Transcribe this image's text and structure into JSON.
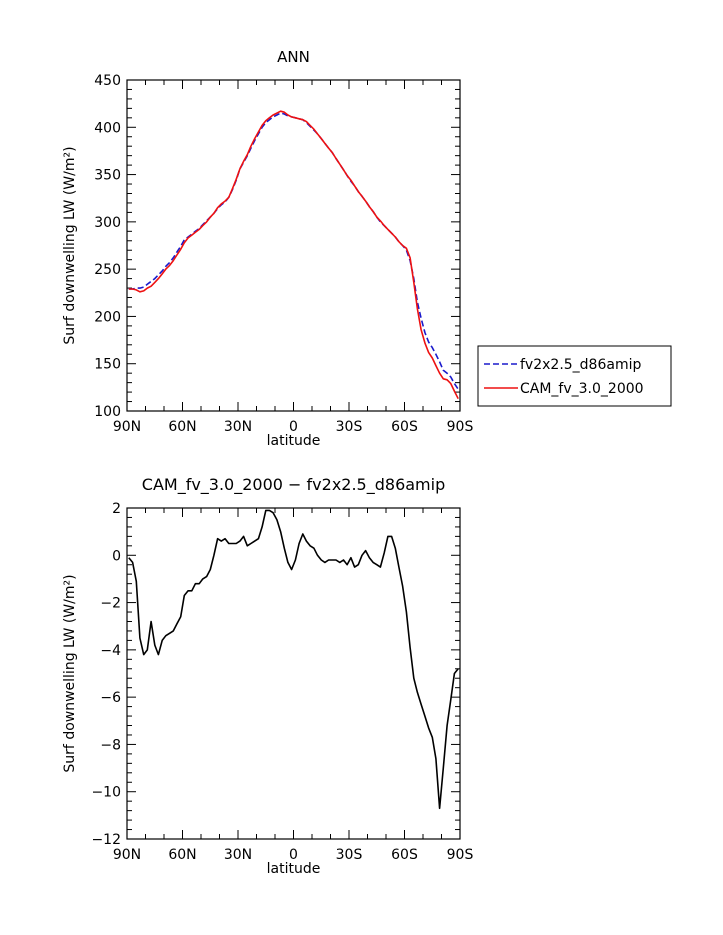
{
  "chart_data": [
    {
      "type": "line",
      "title": "ANN",
      "xlabel": "latitude",
      "ylabel": "Surf downwelling LW (W/m²)",
      "xlim": [
        90,
        -90
      ],
      "ylim": [
        100,
        450
      ],
      "x_ticks": [
        90,
        60,
        30,
        0,
        -30,
        -60,
        -90
      ],
      "x_tick_labels": [
        "90N",
        "60N",
        "30N",
        "0",
        "30S",
        "60S",
        "90S"
      ],
      "y_ticks": [
        100,
        150,
        200,
        250,
        300,
        350,
        400,
        450
      ],
      "y_tick_labels": [
        "100",
        "150",
        "200",
        "250",
        "300",
        "350",
        "400",
        "450"
      ],
      "legend": {
        "placement": "outside-right"
      },
      "series": [
        {
          "name": "fv2x2.5_d86amip",
          "color": "#1a1acc",
          "dash": "dashed",
          "x": [
            89,
            87,
            85,
            83,
            81,
            79,
            77,
            75,
            73,
            71,
            69,
            67,
            65,
            63,
            61,
            59,
            57,
            55,
            53,
            51,
            49,
            47,
            45,
            43,
            41,
            39,
            37,
            35,
            33,
            31,
            29,
            27,
            25,
            23,
            21,
            19,
            17,
            15,
            13,
            11,
            9,
            7,
            5,
            3,
            1,
            -1,
            -3,
            -5,
            -7,
            -9,
            -11,
            -13,
            -15,
            -17,
            -19,
            -21,
            -23,
            -25,
            -27,
            -29,
            -31,
            -33,
            -35,
            -37,
            -39,
            -41,
            -43,
            -45,
            -47,
            -49,
            -51,
            -53,
            -55,
            -57,
            -59,
            -61,
            -63,
            -65,
            -67,
            -69,
            -71,
            -73,
            -75,
            -77,
            -79,
            -81,
            -83,
            -85,
            -87,
            -89
          ],
          "values": [
            229,
            229,
            230,
            230,
            231,
            234,
            237,
            240,
            244,
            248,
            253,
            257,
            262,
            268,
            274,
            281,
            284,
            287,
            290,
            293,
            297,
            301,
            305,
            309,
            314,
            318,
            321,
            326,
            334,
            344,
            356,
            363,
            370,
            378,
            386,
            393,
            400,
            405,
            408,
            411,
            413,
            415,
            414,
            412,
            411,
            410,
            409,
            408,
            405,
            401,
            397,
            393,
            388,
            383,
            378,
            373,
            367,
            361,
            355,
            349,
            343,
            338,
            332,
            327,
            322,
            316,
            311,
            305,
            300,
            296,
            292,
            288,
            284,
            279,
            275,
            270,
            259,
            240,
            215,
            198,
            183,
            173,
            167,
            160,
            152,
            143,
            140,
            136,
            129,
            123
          ]
        },
        {
          "name": "CAM_fv_3.0_2000",
          "color": "#ee1111",
          "dash": "solid",
          "x": [
            89,
            87,
            85,
            83,
            81,
            79,
            77,
            75,
            73,
            71,
            69,
            67,
            65,
            63,
            61,
            59,
            57,
            55,
            53,
            51,
            49,
            47,
            45,
            43,
            41,
            39,
            37,
            35,
            33,
            31,
            29,
            27,
            25,
            23,
            21,
            19,
            17,
            15,
            13,
            11,
            9,
            7,
            5,
            3,
            1,
            -1,
            -3,
            -5,
            -7,
            -9,
            -11,
            -13,
            -15,
            -17,
            -19,
            -21,
            -23,
            -25,
            -27,
            -29,
            -31,
            -33,
            -35,
            -37,
            -39,
            -41,
            -43,
            -45,
            -47,
            -49,
            -51,
            -53,
            -55,
            -57,
            -59,
            -61,
            -63,
            -65,
            -67,
            -69,
            -71,
            -73,
            -75,
            -77,
            -79,
            -81,
            -83,
            -85,
            -87,
            -89
          ],
          "values": [
            229,
            229,
            228,
            226,
            227,
            230,
            232,
            236,
            240,
            245,
            250,
            254,
            259,
            265,
            271,
            278,
            283,
            286,
            289,
            292,
            296,
            300,
            305,
            309,
            315,
            319,
            322,
            326,
            335,
            345,
            356,
            364,
            371,
            380,
            388,
            395,
            402,
            407,
            410,
            413,
            415,
            417,
            416,
            413,
            411,
            410,
            409,
            408,
            406,
            402,
            398,
            393,
            388,
            383,
            378,
            373,
            367,
            361,
            355,
            349,
            344,
            338,
            332,
            327,
            322,
            316,
            311,
            305,
            301,
            296,
            292,
            288,
            284,
            279,
            275,
            272,
            262,
            236,
            208,
            186,
            172,
            162,
            156,
            148,
            140,
            134,
            133,
            129,
            121,
            113
          ]
        }
      ]
    },
    {
      "type": "line",
      "title": "CAM_fv_3.0_2000 − fv2x2.5_d86amip",
      "xlabel": "latitude",
      "ylabel": "Surf downwelling LW (W/m²)",
      "xlim": [
        90,
        -90
      ],
      "ylim": [
        -12,
        2
      ],
      "x_ticks": [
        90,
        60,
        30,
        0,
        -30,
        -60,
        -90
      ],
      "x_tick_labels": [
        "90N",
        "60N",
        "30N",
        "0",
        "30S",
        "60S",
        "90S"
      ],
      "y_ticks": [
        -12,
        -10,
        -8,
        -6,
        -4,
        -2,
        0,
        2
      ],
      "y_tick_labels": [
        "−12",
        "−10",
        "−8",
        "−6",
        "−4",
        "−2",
        "0",
        "2"
      ],
      "series": [
        {
          "color": "#000000",
          "dash": "solid",
          "x": [
            89,
            87,
            85,
            83,
            81,
            79,
            77,
            75,
            73,
            71,
            69,
            67,
            65,
            63,
            61,
            59,
            57,
            55,
            53,
            51,
            49,
            47,
            45,
            43,
            41,
            39,
            37,
            35,
            33,
            31,
            29,
            27,
            25,
            23,
            21,
            19,
            17,
            15,
            13,
            11,
            9,
            7,
            5,
            3,
            1,
            -1,
            -3,
            -5,
            -7,
            -9,
            -11,
            -13,
            -15,
            -17,
            -19,
            -21,
            -23,
            -25,
            -27,
            -29,
            -31,
            -33,
            -35,
            -37,
            -39,
            -41,
            -43,
            -45,
            -47,
            -49,
            -51,
            -53,
            -55,
            -57,
            -59,
            -61,
            -63,
            -65,
            -67,
            -69,
            -71,
            -73,
            -75,
            -77,
            -79,
            -81,
            -83,
            -85,
            -87,
            -89
          ],
          "values": [
            -0.1,
            -0.3,
            -1.1,
            -3.5,
            -4.2,
            -4.0,
            -2.8,
            -3.8,
            -4.2,
            -3.6,
            -3.4,
            -3.3,
            -3.2,
            -2.9,
            -2.6,
            -1.7,
            -1.5,
            -1.5,
            -1.2,
            -1.2,
            -1.0,
            -0.9,
            -0.6,
            0.0,
            0.7,
            0.6,
            0.7,
            0.5,
            0.5,
            0.5,
            0.6,
            0.8,
            0.4,
            0.5,
            0.6,
            0.7,
            1.2,
            1.9,
            1.9,
            1.8,
            1.5,
            1.0,
            0.3,
            -0.3,
            -0.6,
            -0.2,
            0.5,
            0.9,
            0.6,
            0.4,
            0.3,
            0.0,
            -0.2,
            -0.3,
            -0.2,
            -0.2,
            -0.2,
            -0.3,
            -0.2,
            -0.4,
            -0.1,
            -0.5,
            -0.4,
            0.0,
            0.2,
            -0.1,
            -0.3,
            -0.4,
            -0.5,
            0.1,
            0.8,
            0.8,
            0.3,
            -0.5,
            -1.3,
            -2.4,
            -3.9,
            -5.2,
            -5.8,
            -6.3,
            -6.8,
            -7.3,
            -7.7,
            -8.6,
            -10.7,
            -9.0,
            -7.2,
            -6.1,
            -5.0,
            -4.8
          ]
        }
      ]
    }
  ]
}
